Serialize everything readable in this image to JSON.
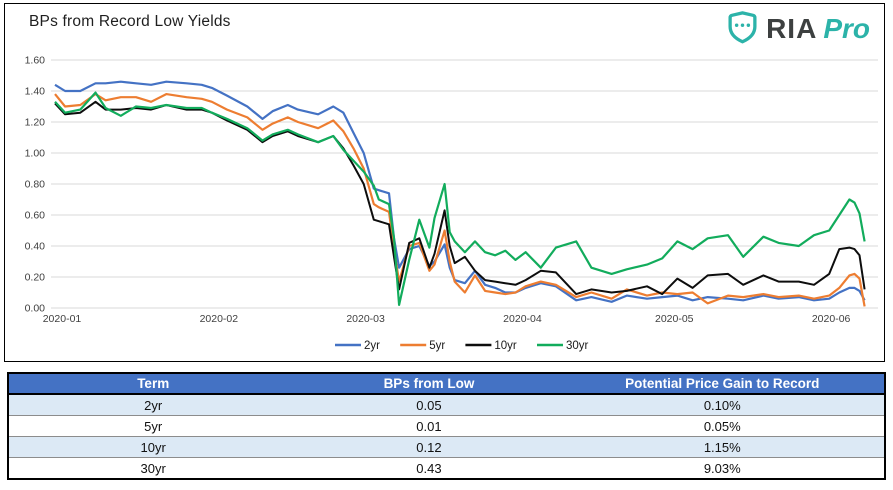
{
  "header": {
    "title": "BPs from Record Low Yields",
    "logo": {
      "brand": "RIA",
      "suffix": "Pro",
      "teal": "#2cb3a9",
      "dark": "#3d4040"
    }
  },
  "chart_data": {
    "type": "line",
    "title": "BPs from Record Low Yields",
    "xlabel": "",
    "ylabel": "",
    "x_unit": "days since 2020-01-01",
    "ylim": [
      0,
      1.6
    ],
    "grid": true,
    "legend_position": "bottom-center",
    "y_tick_labels": [
      "1.60",
      "1.40",
      "1.20",
      "1.00",
      "0.80",
      "0.60",
      "0.40",
      "0.20",
      "0.00"
    ],
    "x_tick_days": [
      0,
      31,
      60,
      91,
      121,
      152
    ],
    "x_tick_labels": [
      "2020-01",
      "2020-02",
      "2020-03",
      "2020-04",
      "2020-05",
      "2020-06"
    ],
    "x": [
      0,
      2,
      5,
      8,
      10,
      13,
      16,
      19,
      22,
      26,
      29,
      31,
      34,
      38,
      41,
      43,
      46,
      48,
      52,
      55,
      57,
      59,
      61,
      63,
      64,
      66,
      67,
      68,
      70,
      72,
      74,
      75,
      77,
      78,
      79,
      81,
      83,
      85,
      87,
      89,
      91,
      93,
      96,
      99,
      103,
      106,
      110,
      113,
      117,
      120,
      123,
      126,
      129,
      133,
      136,
      140,
      143,
      147,
      150,
      153,
      155,
      157,
      158,
      159,
      160
    ],
    "series": [
      {
        "name": "2yr",
        "color": "#4472C4",
        "values": [
          1.44,
          1.4,
          1.4,
          1.45,
          1.45,
          1.46,
          1.45,
          1.44,
          1.46,
          1.45,
          1.44,
          1.42,
          1.37,
          1.3,
          1.22,
          1.27,
          1.31,
          1.28,
          1.25,
          1.3,
          1.26,
          1.13,
          1.0,
          0.77,
          0.76,
          0.74,
          0.45,
          0.26,
          0.38,
          0.4,
          0.27,
          0.3,
          0.41,
          0.26,
          0.18,
          0.16,
          0.24,
          0.15,
          0.13,
          0.1,
          0.1,
          0.13,
          0.16,
          0.14,
          0.05,
          0.07,
          0.04,
          0.08,
          0.06,
          0.07,
          0.08,
          0.05,
          0.07,
          0.06,
          0.05,
          0.08,
          0.06,
          0.07,
          0.05,
          0.06,
          0.1,
          0.13,
          0.13,
          0.11,
          0.05
        ]
      },
      {
        "name": "5yr",
        "color": "#ED7D31",
        "values": [
          1.38,
          1.3,
          1.31,
          1.38,
          1.34,
          1.36,
          1.36,
          1.33,
          1.38,
          1.36,
          1.35,
          1.33,
          1.28,
          1.23,
          1.15,
          1.19,
          1.23,
          1.2,
          1.16,
          1.21,
          1.14,
          1.03,
          0.9,
          0.67,
          0.65,
          0.62,
          0.38,
          0.17,
          0.4,
          0.42,
          0.24,
          0.28,
          0.5,
          0.3,
          0.17,
          0.1,
          0.21,
          0.11,
          0.1,
          0.09,
          0.1,
          0.14,
          0.17,
          0.15,
          0.07,
          0.1,
          0.06,
          0.12,
          0.08,
          0.1,
          0.09,
          0.1,
          0.03,
          0.08,
          0.07,
          0.09,
          0.07,
          0.08,
          0.06,
          0.08,
          0.13,
          0.21,
          0.22,
          0.19,
          0.01
        ]
      },
      {
        "name": "10yr",
        "color": "#0d0d0d",
        "values": [
          1.32,
          1.25,
          1.26,
          1.33,
          1.28,
          1.28,
          1.29,
          1.28,
          1.31,
          1.28,
          1.28,
          1.26,
          1.21,
          1.15,
          1.07,
          1.11,
          1.14,
          1.11,
          1.07,
          1.11,
          1.03,
          0.92,
          0.8,
          0.57,
          0.56,
          0.54,
          0.33,
          0.12,
          0.42,
          0.45,
          0.26,
          0.35,
          0.63,
          0.4,
          0.29,
          0.33,
          0.24,
          0.18,
          0.17,
          0.16,
          0.15,
          0.18,
          0.24,
          0.23,
          0.09,
          0.12,
          0.1,
          0.11,
          0.14,
          0.09,
          0.19,
          0.13,
          0.21,
          0.22,
          0.15,
          0.21,
          0.17,
          0.17,
          0.15,
          0.22,
          0.38,
          0.39,
          0.38,
          0.34,
          0.12
        ]
      },
      {
        "name": "30yr",
        "color": "#12AC5C",
        "values": [
          1.33,
          1.26,
          1.28,
          1.39,
          1.29,
          1.24,
          1.3,
          1.29,
          1.31,
          1.29,
          1.29,
          1.26,
          1.22,
          1.16,
          1.08,
          1.12,
          1.15,
          1.12,
          1.07,
          1.11,
          1.02,
          0.95,
          0.88,
          0.79,
          0.7,
          0.67,
          0.45,
          0.02,
          0.31,
          0.57,
          0.39,
          0.58,
          0.8,
          0.49,
          0.43,
          0.36,
          0.43,
          0.36,
          0.34,
          0.37,
          0.31,
          0.36,
          0.26,
          0.39,
          0.43,
          0.26,
          0.22,
          0.25,
          0.28,
          0.32,
          0.43,
          0.38,
          0.45,
          0.47,
          0.33,
          0.46,
          0.42,
          0.4,
          0.47,
          0.5,
          0.6,
          0.7,
          0.68,
          0.61,
          0.43
        ]
      }
    ]
  },
  "table": {
    "header_bg": "#4472C4",
    "stripe_bg": "#DCE9F5",
    "columns": [
      "Term",
      "BPs from Low",
      "Potential Price Gain to Record"
    ],
    "rows": [
      [
        "2yr",
        "0.05",
        "0.10%"
      ],
      [
        "5yr",
        "0.01",
        "0.05%"
      ],
      [
        "10yr",
        "0.12",
        "1.15%"
      ],
      [
        "30yr",
        "0.43",
        "9.03%"
      ]
    ]
  }
}
